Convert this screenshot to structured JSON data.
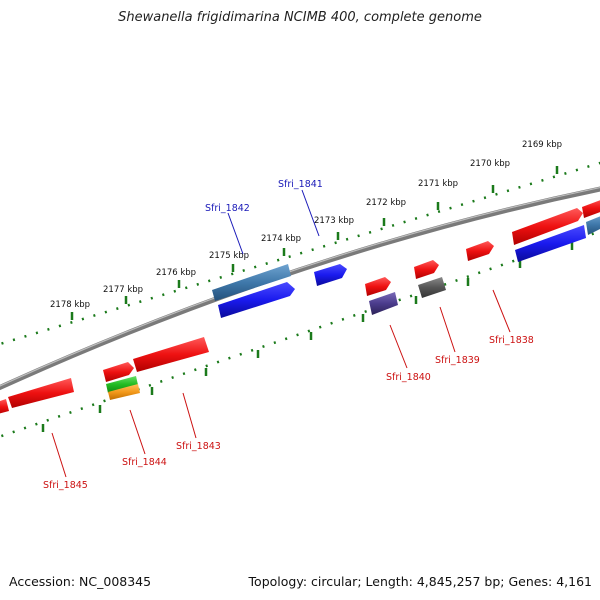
{
  "title": "Shewanella frigidimarina NCIMB 400, complete genome",
  "footer": {
    "accession_label": "Accession:",
    "accession": "NC_008345",
    "topology_label": "Topology:",
    "topology": "circular",
    "length_label": "Length:",
    "length": "4,845,257 bp",
    "genes_label": "Genes:",
    "genes": "4,161"
  },
  "colors": {
    "backbone": "#7a7a7a",
    "tick_line": "#1b7a1b",
    "forward_gene": "#ee1111",
    "highlight_gene": "#1a1aee",
    "steel_gene": "#3f78aa",
    "purple_gene": "#4b3c8c",
    "gray_gene": "#555555",
    "green_gene": "#22bb22",
    "orange_gene": "#f39a1b",
    "red_label": "#cc1111",
    "blue_label": "#1a1ab8"
  },
  "tick_labels": [
    "2169 kbp",
    "2170 kbp",
    "2171 kbp",
    "2172 kbp",
    "2173 kbp",
    "2174 kbp",
    "2175 kbp",
    "2176 kbp",
    "2177 kbp",
    "2178 kbp"
  ],
  "gene_labels": [
    "Sfri_1838",
    "Sfri_1839",
    "Sfri_1840",
    "Sfri_1841",
    "Sfri_1842",
    "Sfri_1843",
    "Sfri_1844",
    "Sfri_1845"
  ]
}
